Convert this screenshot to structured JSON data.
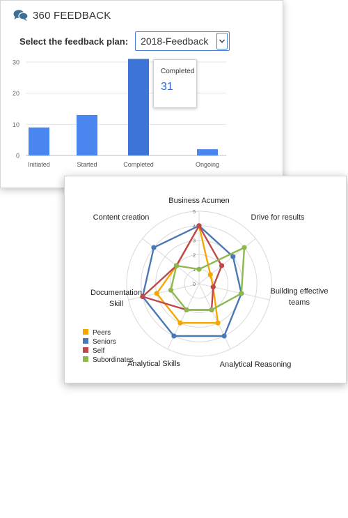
{
  "app": {
    "title": "360 FEEDBACK",
    "logo_icon": "speech-bubbles-icon",
    "logo_color": "#3e6e94"
  },
  "plan": {
    "label": "Select the feedback plan:",
    "selected": "2018-Feedback"
  },
  "tooltip": {
    "label": "Completed",
    "value": "31"
  },
  "colors": {
    "bar": "#4a86f0",
    "bar_highlight": "#3c74d8",
    "accent": "#3366cc"
  },
  "chart_data": [
    {
      "type": "bar",
      "categories": [
        "Initiated",
        "Started",
        "Completed",
        "Ongoing"
      ],
      "values": [
        9,
        13,
        31,
        2
      ],
      "yticks": [
        "0",
        "10",
        "20",
        "30"
      ],
      "ylim": [
        0,
        30
      ],
      "grid": true,
      "highlighted": "Completed"
    },
    {
      "type": "radar",
      "axes": [
        "Business Acumen",
        "Drive for results",
        "Building effective teams",
        "Analytical Reasoning",
        "Analytical Skills",
        "Documentation Skill",
        "Content creation"
      ],
      "ticks": [
        "0",
        "1",
        "2",
        "3",
        "4",
        "5"
      ],
      "rmax": 5,
      "legend_position": "bottom-left",
      "series": [
        {
          "name": "Peers",
          "color": "#f5a700",
          "values": [
            4,
            1,
            1,
            3,
            3,
            3,
            2
          ]
        },
        {
          "name": "Seniors",
          "color": "#4a78b5",
          "values": [
            4,
            3,
            3,
            4,
            4,
            4,
            4
          ]
        },
        {
          "name": "Self",
          "color": "#c0474a",
          "values": [
            4,
            2,
            1,
            2,
            2,
            4,
            2
          ]
        },
        {
          "name": "Subordinates",
          "color": "#8cb84e",
          "values": [
            1,
            4,
            3,
            2,
            2,
            2,
            2
          ]
        }
      ]
    }
  ]
}
